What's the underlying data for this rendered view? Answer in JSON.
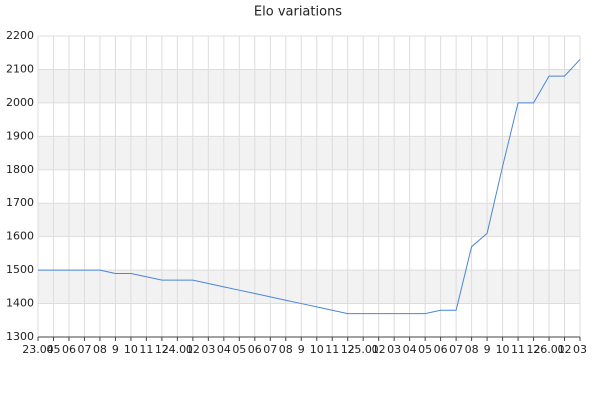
{
  "chart_data": {
    "type": "line",
    "title": "Elo variations",
    "categories": [
      "23.04",
      "05",
      "06",
      "07",
      "08",
      "9",
      "10",
      "11",
      "12",
      "24.01",
      "02",
      "03",
      "04",
      "05",
      "06",
      "07",
      "08",
      "9",
      "10",
      "11",
      "12",
      "25.01",
      "02",
      "03",
      "04",
      "05",
      "06",
      "07",
      "08",
      "9",
      "10",
      "11",
      "12",
      "26.01",
      "02",
      "03"
    ],
    "values": [
      1500,
      1500,
      1500,
      1500,
      1500,
      1490,
      1490,
      1480,
      1470,
      1470,
      1470,
      1460,
      1450,
      1440,
      1430,
      1420,
      1410,
      1400,
      1390,
      1380,
      1370,
      1370,
      1370,
      1370,
      1370,
      1370,
      1380,
      1380,
      1570,
      1610,
      1810,
      2000,
      2000,
      2080,
      2080,
      2130
    ],
    "color": "#4a86d8",
    "ylim": [
      1300,
      2200
    ],
    "yticks": [
      1300,
      1400,
      1500,
      1600,
      1700,
      1800,
      1900,
      2000,
      2100,
      2200
    ],
    "grid": true,
    "banded": true
  }
}
